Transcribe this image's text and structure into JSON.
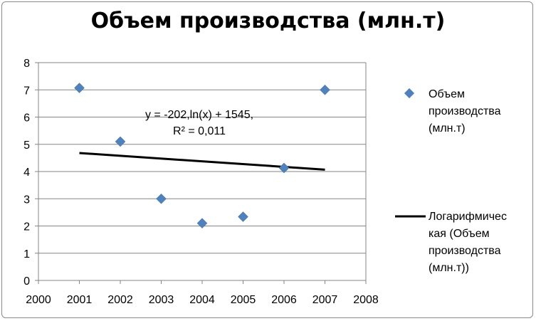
{
  "chart_data": {
    "type": "scatter",
    "title": "Объем производства (млн.т)",
    "x_ticks": [
      "2000",
      "2001",
      "2002",
      "2003",
      "2004",
      "2005",
      "2006",
      "2007",
      "2008"
    ],
    "y_ticks": [
      "0",
      "1",
      "2",
      "3",
      "4",
      "5",
      "6",
      "7",
      "8"
    ],
    "xlim": [
      2000,
      2008
    ],
    "ylim": [
      0,
      8
    ],
    "grid": "horizontal",
    "legend_position": "right",
    "series": [
      {
        "name": "Объем производства (млн.т)",
        "marker": "diamond",
        "color": "#4f81bd",
        "x": [
          2001,
          2002,
          2003,
          2004,
          2005,
          2006,
          2007
        ],
        "y": [
          7.07,
          5.1,
          3.0,
          2.1,
          2.34,
          4.13,
          7.0
        ]
      }
    ],
    "trendline": {
      "name": "Логарифмическая (Объем производства (млн.т))",
      "type": "logarithmic",
      "color": "#000000",
      "x": [
        2001,
        2007
      ],
      "y": [
        4.68,
        4.07
      ],
      "equation_line1": "y = -202,ln(x) + 1545,",
      "equation_line2": "R² = 0,011"
    }
  },
  "legend": {
    "series_label_lines": [
      "Объем",
      "производства",
      "(млн.т)"
    ],
    "trend_label_lines": [
      "Логарифмичес",
      "кая (Объем",
      "производства",
      "(млн.т))"
    ]
  }
}
